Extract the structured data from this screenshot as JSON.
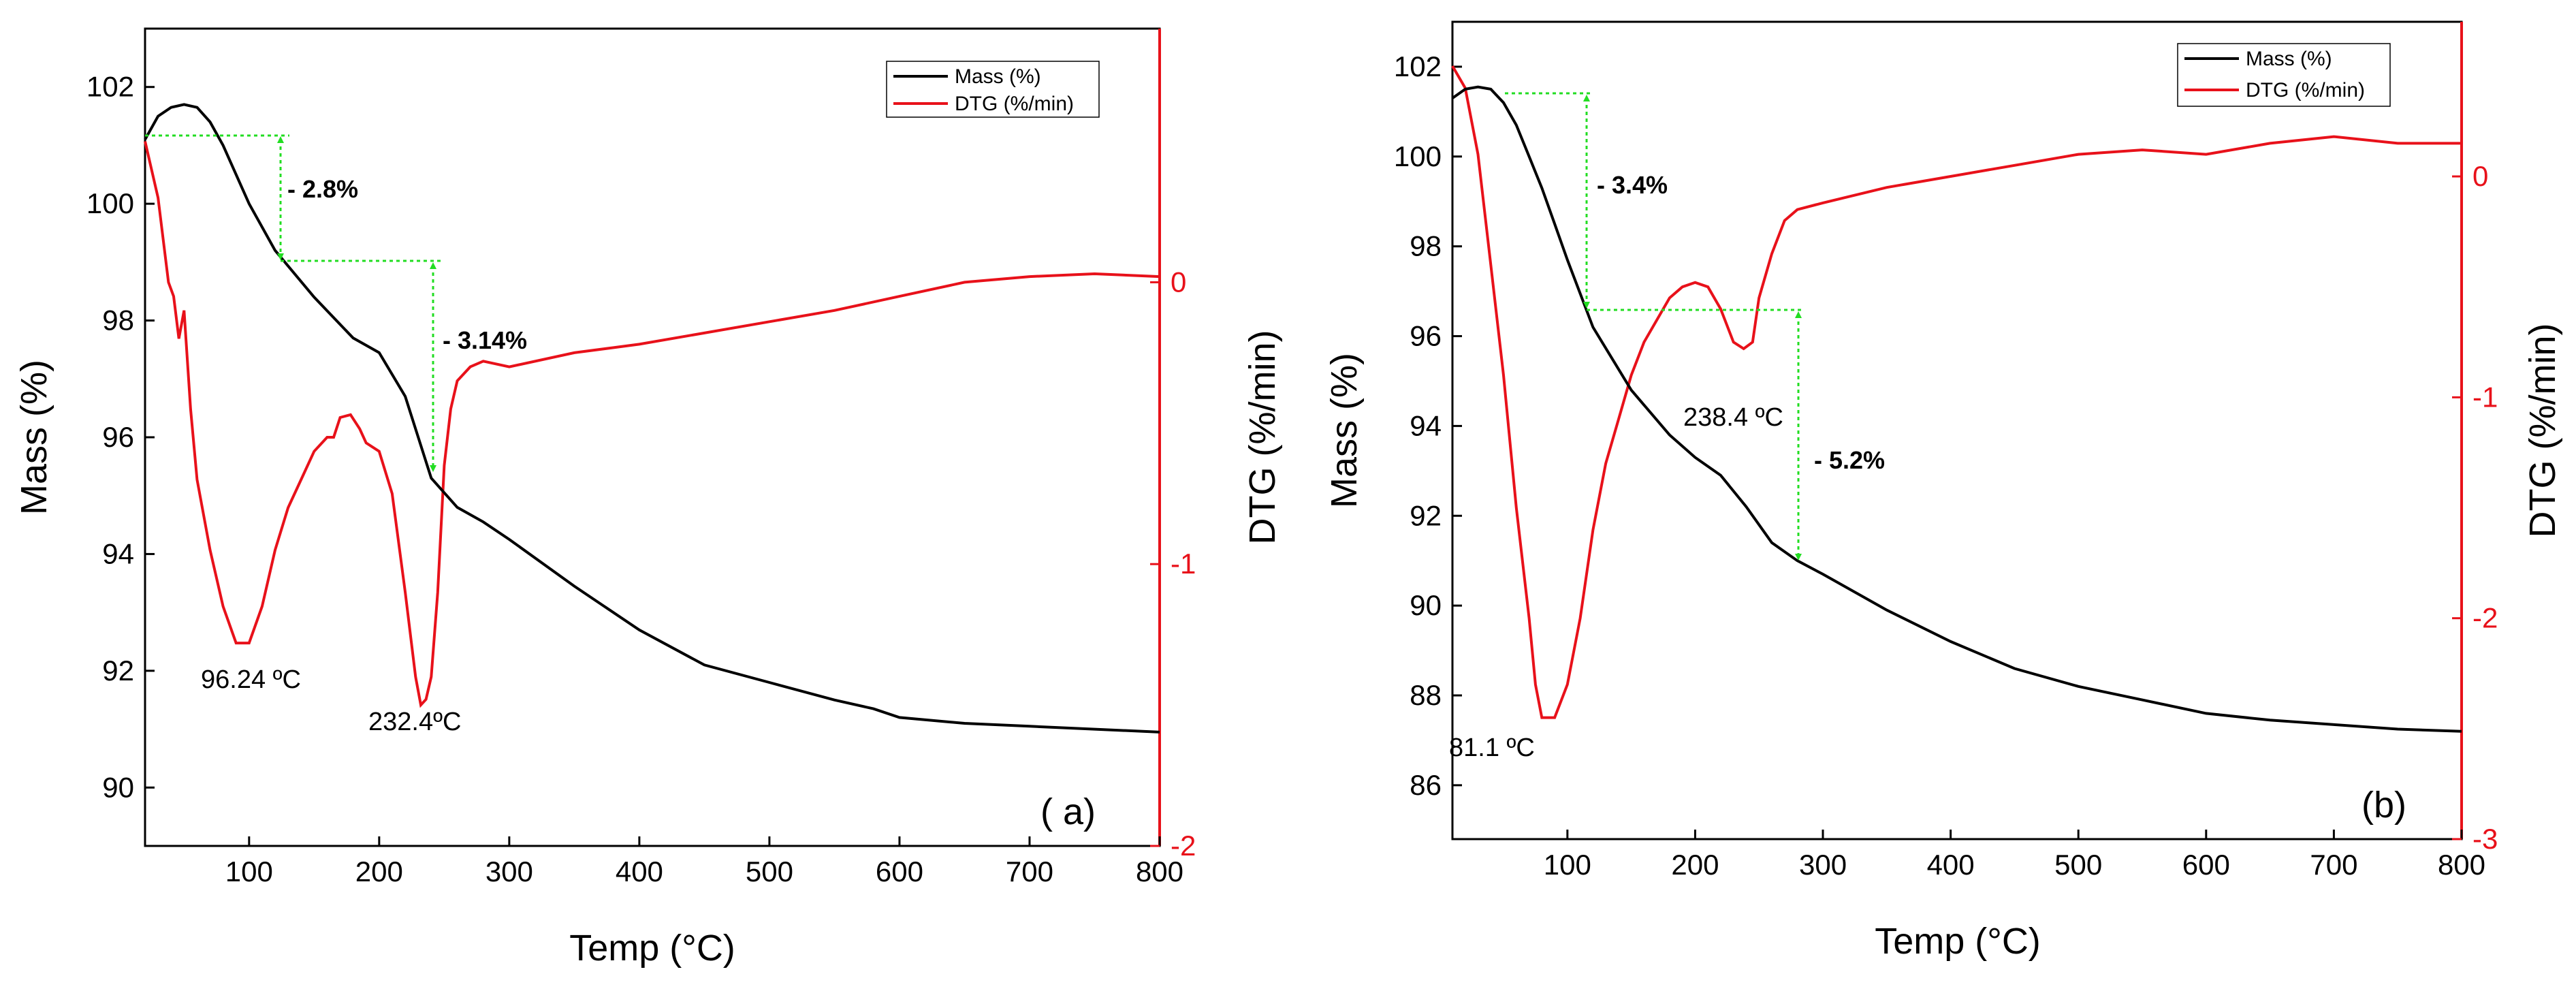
{
  "colors": {
    "mass": "#000000",
    "dtg": "#e8111a",
    "annotation": "#22dd22",
    "background": "#ffffff"
  },
  "chart_data": [
    {
      "type": "line",
      "panel_label": "( a)",
      "xlabel": "Temp (°C)",
      "ylabel": "Mass (%)",
      "y2label": "DTG (%/min)",
      "xlim": [
        20,
        800
      ],
      "ylim": [
        89,
        103
      ],
      "y2lim": [
        -2,
        0.9
      ],
      "xticks": [
        100,
        200,
        300,
        400,
        500,
        600,
        700,
        800
      ],
      "yticks": [
        90,
        92,
        94,
        96,
        98,
        100,
        102
      ],
      "y2ticks": [
        -2,
        -1,
        0
      ],
      "legend": {
        "position": "top-right",
        "entries": [
          "Mass (%)",
          "DTG (%/min)"
        ]
      },
      "series": [
        {
          "name": "Mass (%)",
          "axis": "left",
          "x": [
            20,
            30,
            40,
            50,
            60,
            70,
            80,
            100,
            120,
            150,
            180,
            200,
            220,
            240,
            250,
            260,
            280,
            300,
            350,
            400,
            450,
            500,
            550,
            580,
            600,
            650,
            700,
            750,
            800
          ],
          "y": [
            101.1,
            101.5,
            101.65,
            101.7,
            101.65,
            101.4,
            101.0,
            100.0,
            99.2,
            98.4,
            97.7,
            97.45,
            96.7,
            95.3,
            95.05,
            94.8,
            94.55,
            94.25,
            93.45,
            92.7,
            92.1,
            91.8,
            91.5,
            91.35,
            91.2,
            91.1,
            91.05,
            91.0,
            90.95
          ]
        },
        {
          "name": "DTG (%/min)",
          "axis": "right",
          "x": [
            20,
            30,
            38,
            42,
            46,
            50,
            55,
            60,
            70,
            80,
            90,
            100,
            110,
            120,
            130,
            140,
            150,
            160,
            165,
            170,
            178,
            185,
            190,
            200,
            210,
            220,
            228,
            232,
            236,
            240,
            245,
            250,
            255,
            260,
            270,
            280,
            300,
            350,
            400,
            450,
            500,
            550,
            600,
            650,
            700,
            750,
            800
          ],
          "y": [
            0.5,
            0.3,
            0.0,
            -0.05,
            -0.2,
            -0.1,
            -0.45,
            -0.7,
            -0.95,
            -1.15,
            -1.28,
            -1.28,
            -1.15,
            -0.95,
            -0.8,
            -0.7,
            -0.6,
            -0.55,
            -0.55,
            -0.48,
            -0.47,
            -0.52,
            -0.57,
            -0.6,
            -0.75,
            -1.1,
            -1.4,
            -1.5,
            -1.48,
            -1.4,
            -1.1,
            -0.65,
            -0.45,
            -0.35,
            -0.3,
            -0.28,
            -0.3,
            -0.25,
            -0.22,
            -0.18,
            -0.14,
            -0.1,
            -0.05,
            0.0,
            0.02,
            0.03,
            0.02
          ]
        }
      ],
      "annotations": [
        {
          "text": "96.24 ºC"
        },
        {
          "text": "232.4ºC"
        },
        {
          "text": "- 2.8%"
        },
        {
          "text": "- 3.14%"
        }
      ]
    },
    {
      "type": "line",
      "panel_label": "(b)",
      "xlabel": "Temp (°C)",
      "ylabel": "Mass (%)",
      "y2label": "DTG (%/min)",
      "xlim": [
        10,
        800
      ],
      "ylim": [
        84.8,
        103
      ],
      "y2lim": [
        -3,
        0.7
      ],
      "xticks": [
        100,
        200,
        300,
        400,
        500,
        600,
        700,
        800
      ],
      "yticks": [
        86,
        88,
        90,
        92,
        94,
        96,
        98,
        100,
        102
      ],
      "y2ticks": [
        -3,
        -2,
        -1,
        0
      ],
      "legend": {
        "position": "top-right",
        "entries": [
          "Mass (%)",
          "DTG (%/min)"
        ]
      },
      "series": [
        {
          "name": "Mass (%)",
          "axis": "left",
          "x": [
            10,
            20,
            30,
            40,
            50,
            60,
            70,
            80,
            90,
            100,
            120,
            150,
            180,
            200,
            220,
            240,
            260,
            280,
            300,
            350,
            400,
            450,
            500,
            550,
            600,
            650,
            700,
            750,
            800
          ],
          "y": [
            101.3,
            101.5,
            101.55,
            101.5,
            101.2,
            100.7,
            100.0,
            99.3,
            98.5,
            97.7,
            96.2,
            94.8,
            93.8,
            93.3,
            92.9,
            92.2,
            91.4,
            91.0,
            90.7,
            89.9,
            89.2,
            88.6,
            88.2,
            87.9,
            87.6,
            87.45,
            87.35,
            87.25,
            87.2
          ]
        },
        {
          "name": "DTG (%/min)",
          "axis": "right",
          "x": [
            10,
            20,
            30,
            40,
            50,
            60,
            70,
            75,
            80,
            90,
            100,
            110,
            120,
            130,
            140,
            150,
            160,
            170,
            180,
            190,
            200,
            210,
            220,
            230,
            238,
            245,
            250,
            260,
            270,
            280,
            300,
            350,
            400,
            450,
            500,
            550,
            600,
            650,
            700,
            750,
            800
          ],
          "y": [
            0.5,
            0.4,
            0.1,
            -0.4,
            -0.9,
            -1.5,
            -2.0,
            -2.3,
            -2.45,
            -2.45,
            -2.3,
            -2.0,
            -1.6,
            -1.3,
            -1.1,
            -0.9,
            -0.75,
            -0.65,
            -0.55,
            -0.5,
            -0.48,
            -0.5,
            -0.6,
            -0.75,
            -0.78,
            -0.75,
            -0.55,
            -0.35,
            -0.2,
            -0.15,
            -0.12,
            -0.05,
            0.0,
            0.05,
            0.1,
            0.12,
            0.1,
            0.15,
            0.18,
            0.15,
            0.15
          ]
        }
      ],
      "annotations": [
        {
          "text": "81.1 ºC"
        },
        {
          "text": "238.4 ºC"
        },
        {
          "text": "- 3.4%"
        },
        {
          "text": "- 5.2%"
        }
      ]
    }
  ]
}
